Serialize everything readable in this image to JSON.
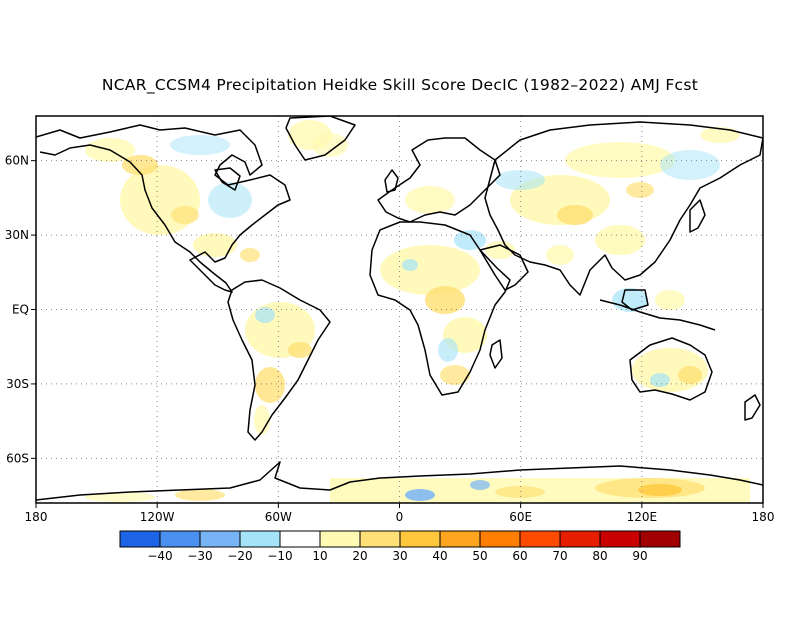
{
  "title": "NCAR_CCSM4 Precipitation Heidke Skill Score DecIC (1982–2022) AMJ Fcst",
  "map": {
    "lon_range": [
      -180,
      180
    ],
    "lat_range": [
      -78,
      78
    ],
    "grid": "dotted",
    "lon_ticks": [
      {
        "value": -180,
        "label": "180"
      },
      {
        "value": -120,
        "label": "120W"
      },
      {
        "value": -60,
        "label": "60W"
      },
      {
        "value": 0,
        "label": "0"
      },
      {
        "value": 60,
        "label": "60E"
      },
      {
        "value": 120,
        "label": "120E"
      },
      {
        "value": 180,
        "label": "180"
      }
    ],
    "lat_ticks": [
      {
        "value": 60,
        "label": "60N"
      },
      {
        "value": 30,
        "label": "30N"
      },
      {
        "value": 0,
        "label": "EQ"
      },
      {
        "value": -30,
        "label": "30S"
      },
      {
        "value": -60,
        "label": "60S"
      }
    ]
  },
  "colorbar": {
    "colors": [
      "#1e64e6",
      "#4b8ff0",
      "#78b4f5",
      "#a5e3f8",
      "#ffffff",
      "#fffab4",
      "#ffe178",
      "#ffc83c",
      "#ffa51e",
      "#ff7d00",
      "#ff4b00",
      "#e61e00",
      "#c80000",
      "#a00000"
    ],
    "labels": [
      "−40",
      "−30",
      "−20",
      "−10",
      "10",
      "20",
      "30",
      "40",
      "50",
      "60",
      "70",
      "80",
      "90"
    ]
  }
}
